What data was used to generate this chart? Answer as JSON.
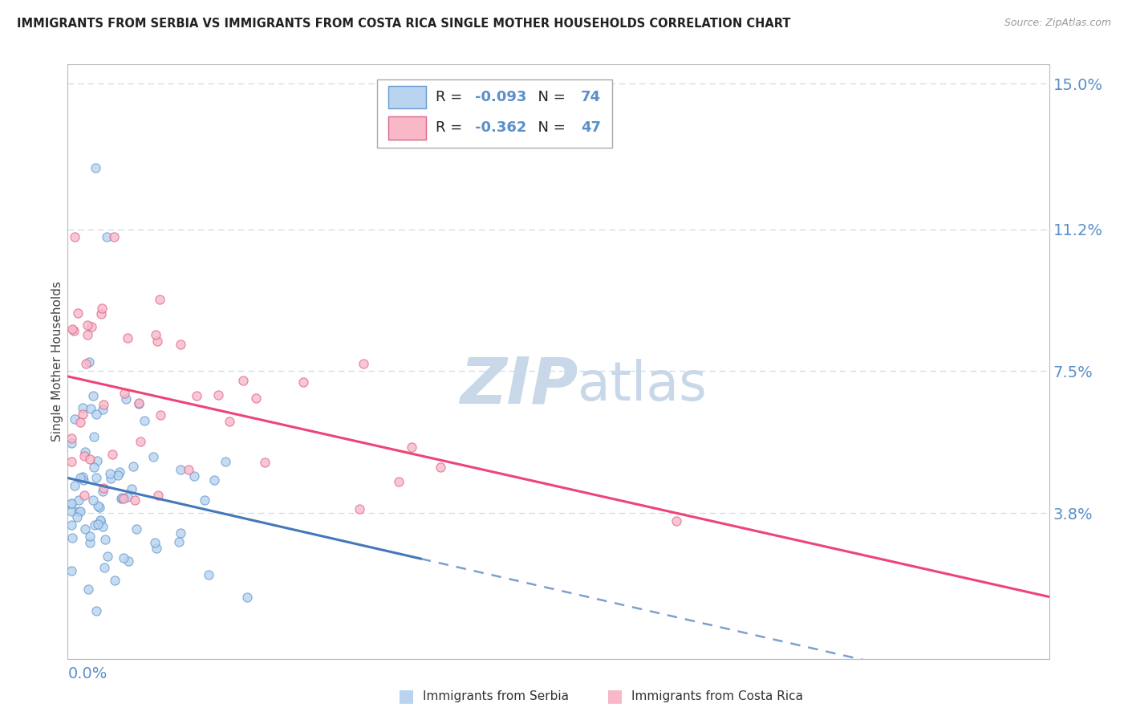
{
  "title": "IMMIGRANTS FROM SERBIA VS IMMIGRANTS FROM COSTA RICA SINGLE MOTHER HOUSEHOLDS CORRELATION CHART",
  "source": "Source: ZipAtlas.com",
  "ylabel": "Single Mother Households",
  "ytick_values": [
    0.0,
    0.038,
    0.075,
    0.112,
    0.15
  ],
  "ytick_labels": [
    "",
    "3.8%",
    "7.5%",
    "11.2%",
    "15.0%"
  ],
  "xlim": [
    0.0,
    0.25
  ],
  "ylim": [
    0.0,
    0.155
  ],
  "serbia": {
    "R": -0.093,
    "N": 74,
    "color": "#b8d4f0",
    "edge_color": "#6699cc",
    "trend_color": "#4477bb",
    "trend_solid_end": 0.09
  },
  "costa_rica": {
    "R": -0.362,
    "N": 47,
    "color": "#f8b8c8",
    "edge_color": "#dd6688",
    "trend_color": "#ee4477"
  },
  "watermark_zip_color": "#c8d8e8",
  "watermark_atlas_color": "#c8d8e8",
  "background_color": "#ffffff",
  "grid_color": "#c8d8e8",
  "axis_label_color": "#5b8fc9",
  "legend_R_color": "#5b8fc9",
  "legend_N_color": "#5b8fc9"
}
